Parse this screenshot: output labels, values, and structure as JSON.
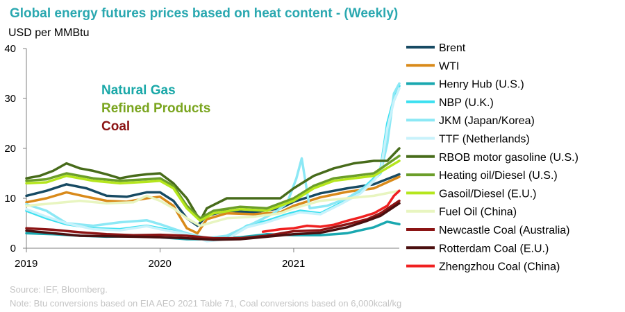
{
  "chart_data": {
    "type": "line",
    "title": "Global energy futures prices based on heat content - (Weekly)",
    "ylabel": "USD per MMBtu",
    "ylim": [
      0,
      40
    ],
    "yticks": [
      0,
      10,
      20,
      30,
      40
    ],
    "xlim": [
      2019.0,
      2021.79
    ],
    "xticks": [
      {
        "value": 2019,
        "label": "2019"
      },
      {
        "value": 2020,
        "label": "2020"
      },
      {
        "value": 2021,
        "label": "2021"
      }
    ],
    "group_labels": [
      {
        "text": "Natural Gas",
        "color": "#1aa8a8"
      },
      {
        "text": "Refined Products",
        "color": "#7aa51f"
      },
      {
        "text": "Coal",
        "color": "#8b1414"
      }
    ],
    "series": [
      {
        "name": "Brent",
        "color": "#174a63",
        "x": [
          2019.0,
          2019.15,
          2019.3,
          2019.45,
          2019.6,
          2019.75,
          2019.9,
          2020.0,
          2020.1,
          2020.2,
          2020.28,
          2020.35,
          2020.5,
          2020.7,
          2020.9,
          2021.0,
          2021.2,
          2021.4,
          2021.6,
          2021.79
        ],
        "y": [
          10.5,
          11.5,
          12.8,
          12.0,
          10.5,
          10.3,
          11.2,
          11.2,
          9.5,
          6.0,
          4.5,
          6.5,
          7.5,
          7.2,
          8.0,
          9.3,
          11.0,
          12.0,
          12.8,
          14.8
        ]
      },
      {
        "name": "WTI",
        "color": "#d98a1a",
        "x": [
          2019.0,
          2019.15,
          2019.3,
          2019.45,
          2019.6,
          2019.75,
          2019.9,
          2020.0,
          2020.1,
          2020.2,
          2020.28,
          2020.35,
          2020.5,
          2020.7,
          2020.9,
          2021.0,
          2021.2,
          2021.4,
          2021.6,
          2021.79
        ],
        "y": [
          9.2,
          10.0,
          11.2,
          10.3,
          9.5,
          9.3,
          10.0,
          10.3,
          8.5,
          4.0,
          3.0,
          5.8,
          7.0,
          6.8,
          7.2,
          8.5,
          10.2,
          11.3,
          12.0,
          14.3
        ]
      },
      {
        "name": "Henry Hub (U.S.)",
        "color": "#1aa8b0",
        "x": [
          2019.0,
          2019.2,
          2019.4,
          2019.6,
          2019.8,
          2020.0,
          2020.2,
          2020.4,
          2020.6,
          2020.8,
          2021.0,
          2021.2,
          2021.4,
          2021.6,
          2021.7,
          2021.79
        ],
        "y": [
          3.0,
          2.8,
          2.5,
          2.3,
          2.4,
          2.2,
          1.8,
          1.8,
          2.2,
          2.8,
          2.6,
          2.6,
          3.0,
          4.2,
          5.3,
          4.8
        ]
      },
      {
        "name": "NBP (U.K.)",
        "color": "#3ce0f0",
        "x": [
          2019.0,
          2019.15,
          2019.3,
          2019.5,
          2019.7,
          2019.9,
          2020.0,
          2020.2,
          2020.35,
          2020.5,
          2020.65,
          2020.8,
          2020.95,
          2021.05,
          2021.2,
          2021.35,
          2021.5,
          2021.6,
          2021.65,
          2021.7,
          2021.75,
          2021.79
        ],
        "y": [
          7.5,
          6.0,
          4.8,
          4.0,
          3.8,
          4.5,
          4.0,
          3.0,
          1.5,
          2.0,
          4.5,
          5.5,
          6.8,
          7.5,
          7.0,
          9.0,
          11.5,
          14.0,
          16.0,
          25.0,
          30.0,
          32.5
        ]
      },
      {
        "name": "JKM (Japan/Korea)",
        "color": "#8ce8f5",
        "x": [
          2019.0,
          2019.15,
          2019.3,
          2019.5,
          2019.7,
          2019.9,
          2020.0,
          2020.2,
          2020.35,
          2020.5,
          2020.7,
          2020.85,
          2020.95,
          2021.02,
          2021.06,
          2021.12,
          2021.25,
          2021.4,
          2021.55,
          2021.65,
          2021.7,
          2021.75,
          2021.79
        ],
        "y": [
          8.8,
          7.5,
          5.0,
          4.5,
          5.2,
          5.6,
          4.8,
          3.0,
          2.0,
          2.5,
          5.0,
          7.0,
          9.0,
          14.0,
          18.0,
          8.0,
          8.5,
          10.0,
          12.5,
          15.0,
          21.0,
          31.0,
          33.0
        ]
      },
      {
        "name": "TTF (Netherlands)",
        "color": "#c8f2fb",
        "x": [
          2019.0,
          2019.15,
          2019.3,
          2019.5,
          2019.7,
          2019.9,
          2020.0,
          2020.2,
          2020.35,
          2020.5,
          2020.65,
          2020.8,
          2020.95,
          2021.05,
          2021.2,
          2021.35,
          2021.5,
          2021.6,
          2021.65,
          2021.7,
          2021.75,
          2021.79
        ],
        "y": [
          7.8,
          6.3,
          5.0,
          3.8,
          3.6,
          4.4,
          3.8,
          2.8,
          1.4,
          1.8,
          4.2,
          5.2,
          6.5,
          7.2,
          6.8,
          8.8,
          11.0,
          13.5,
          15.5,
          24.0,
          29.5,
          32.0
        ]
      },
      {
        "name": "RBOB motor gasoline (U.S.)",
        "color": "#476b1a",
        "x": [
          2019.0,
          2019.1,
          2019.2,
          2019.3,
          2019.4,
          2019.5,
          2019.6,
          2019.7,
          2019.8,
          2019.9,
          2020.0,
          2020.1,
          2020.2,
          2020.3,
          2020.35,
          2020.5,
          2020.7,
          2020.9,
          2021.0,
          2021.15,
          2021.3,
          2021.45,
          2021.6,
          2021.7,
          2021.79
        ],
        "y": [
          14.0,
          14.5,
          15.5,
          17.0,
          16.0,
          15.5,
          14.8,
          14.0,
          14.5,
          14.8,
          15.0,
          13.0,
          10.0,
          5.5,
          8.0,
          10.0,
          10.0,
          10.0,
          12.0,
          14.5,
          16.0,
          17.0,
          17.5,
          17.5,
          20.0
        ]
      },
      {
        "name": "Heating oil/Diesel (U.S.)",
        "color": "#6b9e2a",
        "x": [
          2019.0,
          2019.15,
          2019.3,
          2019.5,
          2019.7,
          2019.9,
          2020.0,
          2020.1,
          2020.2,
          2020.3,
          2020.4,
          2020.6,
          2020.8,
          2021.0,
          2021.15,
          2021.3,
          2021.45,
          2021.6,
          2021.79
        ],
        "y": [
          13.5,
          13.8,
          15.0,
          14.0,
          13.5,
          13.8,
          14.0,
          12.5,
          8.5,
          6.0,
          7.5,
          8.3,
          8.0,
          10.0,
          12.5,
          14.0,
          14.5,
          15.0,
          18.5
        ]
      },
      {
        "name": "Gasoil/Diesel (E.U.)",
        "color": "#b5e61d",
        "x": [
          2019.0,
          2019.15,
          2019.3,
          2019.5,
          2019.7,
          2019.9,
          2020.0,
          2020.1,
          2020.2,
          2020.3,
          2020.4,
          2020.6,
          2020.8,
          2021.0,
          2021.15,
          2021.3,
          2021.45,
          2021.6,
          2021.79
        ],
        "y": [
          13.0,
          13.2,
          14.5,
          13.5,
          13.0,
          13.3,
          13.5,
          12.0,
          8.0,
          5.5,
          7.0,
          7.8,
          7.5,
          9.5,
          12.0,
          13.5,
          14.0,
          14.5,
          17.5
        ]
      },
      {
        "name": "Fuel Oil (China)",
        "color": "#e8f5c0",
        "x": [
          2019.0,
          2019.2,
          2019.4,
          2019.6,
          2019.8,
          2019.9,
          2020.0,
          2020.1,
          2020.2,
          2020.3,
          2020.5,
          2020.7,
          2020.9,
          2021.0,
          2021.2,
          2021.4,
          2021.6,
          2021.79
        ],
        "y": [
          8.5,
          9.0,
          9.5,
          9.0,
          9.2,
          10.5,
          9.5,
          8.0,
          6.0,
          4.5,
          6.0,
          6.3,
          7.0,
          8.0,
          9.5,
          10.0,
          10.5,
          11.5
        ]
      },
      {
        "name": "Newcastle Coal (Australia)",
        "color": "#8b1414",
        "x": [
          2019.0,
          2019.2,
          2019.4,
          2019.6,
          2019.8,
          2020.0,
          2020.2,
          2020.4,
          2020.6,
          2020.8,
          2021.0,
          2021.2,
          2021.4,
          2021.55,
          2021.65,
          2021.79
        ],
        "y": [
          4.0,
          3.7,
          3.2,
          2.8,
          2.6,
          2.7,
          2.5,
          2.0,
          2.0,
          2.5,
          3.4,
          3.6,
          4.8,
          5.8,
          7.0,
          9.5
        ]
      },
      {
        "name": "Rotterdam Coal (E.U.)",
        "color": "#4a0f0f",
        "x": [
          2019.0,
          2019.2,
          2019.4,
          2019.6,
          2019.8,
          2020.0,
          2020.2,
          2020.4,
          2020.6,
          2020.8,
          2021.0,
          2021.2,
          2021.4,
          2021.55,
          2021.65,
          2021.79
        ],
        "y": [
          3.5,
          3.0,
          2.5,
          2.4,
          2.3,
          2.2,
          2.0,
          1.7,
          1.8,
          2.3,
          2.8,
          3.1,
          4.2,
          5.5,
          6.5,
          9.0
        ]
      },
      {
        "name": "Zhengzhou Coal (China)",
        "color": "#f02020",
        "x": [
          2020.77,
          2020.9,
          2021.0,
          2021.1,
          2021.2,
          2021.3,
          2021.4,
          2021.5,
          2021.6,
          2021.7,
          2021.75,
          2021.79
        ],
        "y": [
          3.3,
          3.8,
          4.0,
          4.5,
          4.3,
          4.7,
          5.5,
          6.2,
          7.0,
          8.5,
          10.5,
          11.5
        ]
      }
    ],
    "source": "Source: IEF, Bloomberg.",
    "note": "Note: Btu conversions based on EIA AEO 2021 Table 71, Coal conversions based on 6,000kcal/kg"
  }
}
